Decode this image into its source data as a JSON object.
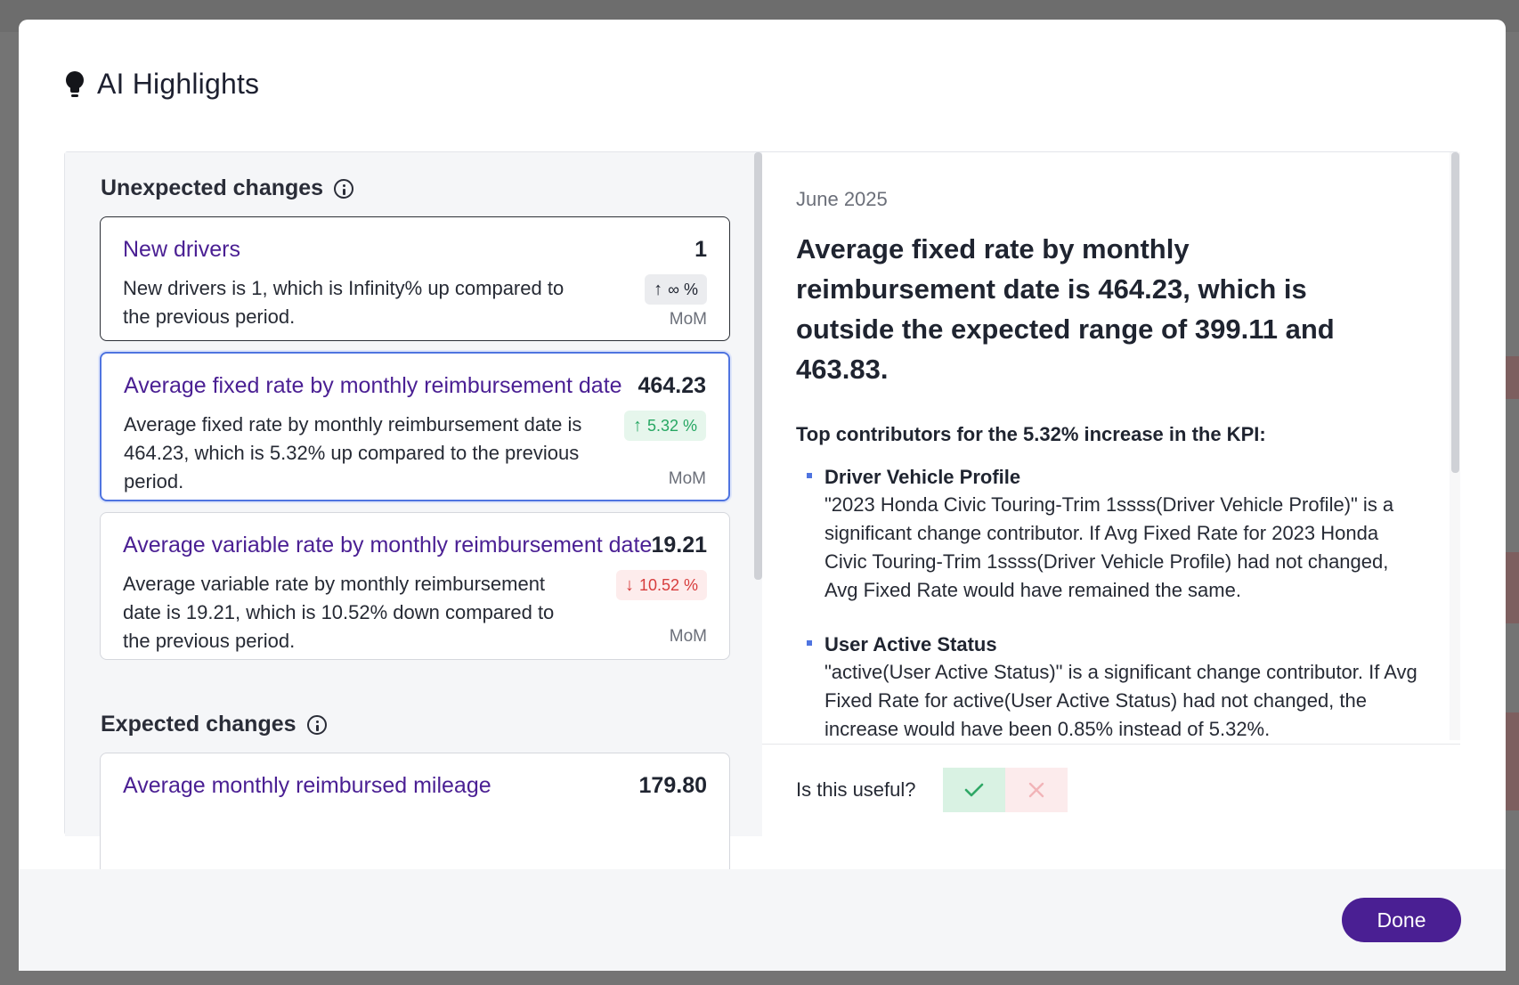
{
  "modal": {
    "title": "AI Highlights",
    "done_label": "Done"
  },
  "unexpected": {
    "title": "Unexpected changes",
    "cards": [
      {
        "title": "New drivers",
        "value": "1",
        "desc": "New drivers is 1, which is Infinity% up compared to the previous period.",
        "change": "∞ %",
        "arrow": "↑",
        "period": "MoM"
      },
      {
        "title": "Average fixed rate by monthly reimbursement date",
        "value": "464.23",
        "desc": "Average fixed rate by monthly reimbursement date is 464.23, which is 5.32% up compared to the previous period.",
        "change": "5.32 %",
        "arrow": "↑",
        "period": "MoM"
      },
      {
        "title": "Average variable rate by monthly reimbursement date",
        "value": "19.21",
        "desc": "Average variable rate by monthly reimbursement date is 19.21, which is 10.52% down compared to the previous period.",
        "change": "10.52 %",
        "arrow": "↓",
        "period": "MoM"
      }
    ]
  },
  "expected": {
    "title": "Expected changes",
    "cards": [
      {
        "title": "Average monthly reimbursed mileage",
        "value": "179.80"
      }
    ]
  },
  "detail": {
    "date": "June 2025",
    "headline": "Average fixed rate by monthly reimbursement date is 464.23, which is outside the expected range of 399.11 and 463.83.",
    "contributors_title": "Top contributors for the 5.32% increase in the KPI:",
    "contributors": [
      {
        "name": "Driver Vehicle Profile",
        "text": "\"2023 Honda Civic Touring-Trim 1ssss(Driver Vehicle Profile)\" is a significant change contributor. If Avg Fixed Rate for 2023 Honda Civic Touring-Trim 1ssss(Driver Vehicle Profile) had not changed, Avg Fixed Rate would have remained the same."
      },
      {
        "name": "User Active Status",
        "text": "\"active(User Active Status)\" is a significant change contributor. If Avg Fixed Rate for active(User Active Status) had not changed, the increase would have been 0.85% instead of 5.32%."
      }
    ],
    "feedback_label": "Is this useful?"
  },
  "colors": {
    "accent": "#4a1f93",
    "selected_border": "#4f74e0",
    "up": "#27a763",
    "down": "#d73d3d"
  }
}
